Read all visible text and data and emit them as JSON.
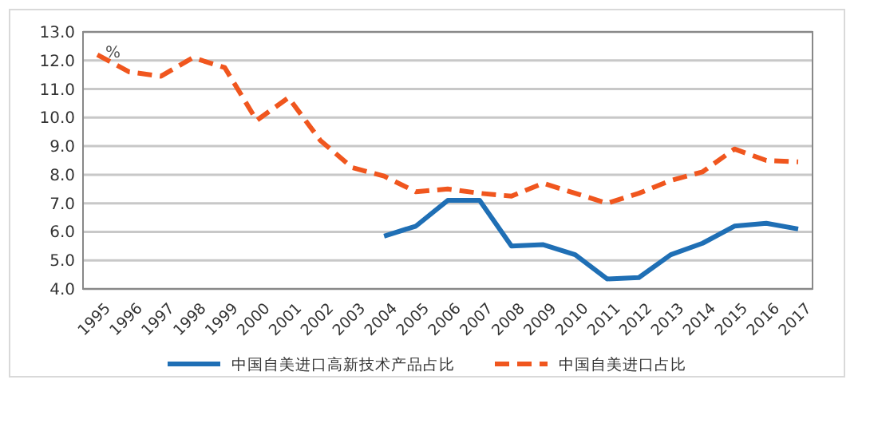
{
  "chart_data": {
    "type": "line",
    "ylabel": "%",
    "categories": [
      "1995",
      "1996",
      "1997",
      "1998",
      "1999",
      "2000",
      "2001",
      "2002",
      "2003",
      "2004",
      "2005",
      "2006",
      "2007",
      "2008",
      "2009",
      "2010",
      "2011",
      "2012",
      "2013",
      "2014",
      "2015",
      "2016",
      "2017"
    ],
    "series": [
      {
        "name": "中国自美进口高新技术产品占比",
        "color": "#1f6fb5",
        "line_style": "solid",
        "values": [
          null,
          null,
          null,
          null,
          null,
          null,
          null,
          null,
          null,
          5.85,
          6.2,
          7.1,
          7.1,
          5.5,
          5.55,
          5.2,
          4.35,
          4.4,
          5.2,
          5.6,
          6.2,
          6.3,
          6.1
        ]
      },
      {
        "name": "中国自美进口占比",
        "color": "#f0561e",
        "line_style": "dashed",
        "values": [
          12.2,
          11.6,
          11.45,
          12.1,
          11.75,
          9.9,
          10.7,
          9.2,
          8.25,
          7.95,
          7.4,
          7.5,
          7.35,
          7.25,
          7.7,
          7.35,
          7.0,
          7.35,
          7.8,
          8.1,
          8.9,
          8.5,
          8.45
        ]
      }
    ],
    "ylim": [
      4,
      13
    ],
    "yticks": [
      {
        "value": 4,
        "label": "4.0"
      },
      {
        "value": 5,
        "label": "5.0"
      },
      {
        "value": 6,
        "label": "6.0"
      },
      {
        "value": 7,
        "label": "7.0"
      },
      {
        "value": 8,
        "label": "8.0"
      },
      {
        "value": 9,
        "label": "9.0"
      },
      {
        "value": 10,
        "label": "10.0"
      },
      {
        "value": 11,
        "label": "11.0"
      },
      {
        "value": 12,
        "label": "12.0"
      },
      {
        "value": 13,
        "label": "13.0"
      }
    ],
    "grid": "y",
    "legend": "bottom",
    "marker": "none"
  }
}
